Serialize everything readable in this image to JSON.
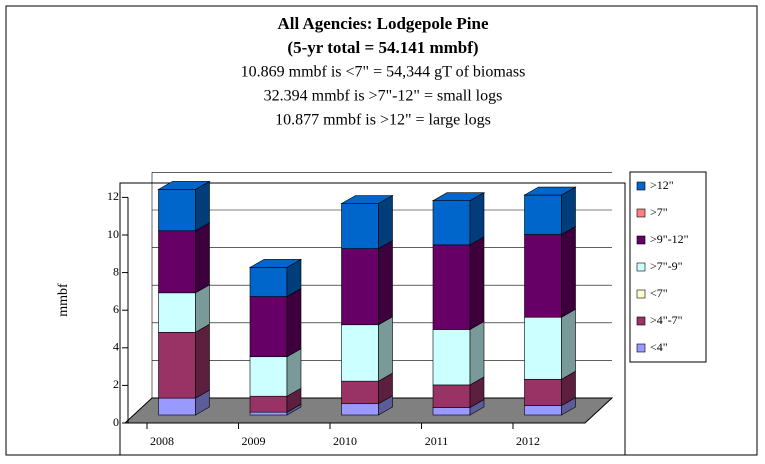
{
  "chart_data": {
    "type": "bar3d_stacked",
    "title": "All Agencies: Lodgepole Pine",
    "subtitle": "(5-yr total = 54.141 mmbf)",
    "annotations": [
      "10.869 mmbf is <7\" = 54,344 gT of biomass",
      "32.394 mmbf is >7\"-12\" = small logs",
      "10.877 mmbf is >12\" = large logs"
    ],
    "y_label": "mmbf",
    "categories": [
      "2008",
      "2009",
      "2010",
      "2011",
      "2012"
    ],
    "series": [
      {
        "name": "<4\"",
        "color": "#9999ff",
        "values": [
          0.9,
          0.15,
          0.6,
          0.4,
          0.5
        ]
      },
      {
        "name": ">4\"-7\"",
        "color": "#993366",
        "values": [
          3.5,
          0.85,
          1.2,
          1.2,
          1.4
        ]
      },
      {
        "name": "<7\"",
        "color": "#ffffcc",
        "values": [
          0,
          0,
          0,
          0,
          0
        ]
      },
      {
        "name": ">7\"-9\"",
        "color": "#ccffff",
        "values": [
          2.1,
          2.1,
          3.0,
          2.95,
          3.3
        ]
      },
      {
        "name": ">9\"-12\"",
        "color": "#660066",
        "values": [
          3.3,
          3.2,
          4.05,
          4.5,
          4.4
        ]
      },
      {
        "name": ">7\"",
        "color": "#ff8080",
        "values": [
          0,
          0,
          0,
          0,
          0
        ]
      },
      {
        "name": ">12\"",
        "color": "#0066cc",
        "values": [
          2.2,
          1.55,
          2.4,
          2.35,
          2.1
        ]
      }
    ],
    "ylim": [
      0,
      12
    ],
    "yticks": [
      0,
      2,
      4,
      6,
      8,
      10,
      12
    ],
    "grid": true,
    "legend": "right"
  }
}
